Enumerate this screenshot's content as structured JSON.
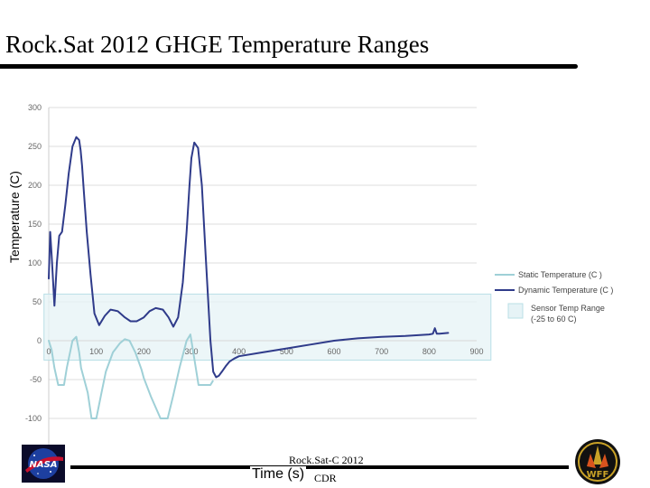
{
  "slide": {
    "title": "Rock.Sat 2012 GHGE Temperature Ranges",
    "footer": "Rock.Sat-C 2012",
    "footer_cdr": "CDR",
    "logo_left": "NASA",
    "logo_right": "WFF"
  },
  "chart_data": {
    "type": "line",
    "title": "",
    "xlabel": "Time (s)",
    "ylabel": "Temperature (C)",
    "xlim": [
      0,
      900
    ],
    "ylim": [
      -100,
      300
    ],
    "xticks": [
      0,
      100,
      200,
      300,
      400,
      500,
      600,
      700,
      800,
      900
    ],
    "yticks": [
      -100,
      -50,
      0,
      50,
      100,
      150,
      200,
      250,
      300
    ],
    "grid": "horizontal",
    "legend_position": "right",
    "colors": {
      "static": "#9fd0d7",
      "dynamic": "#2f3b8a",
      "band_fill": "#e6f3f6",
      "band_stroke": "#b9dfe6",
      "grid": "#dddddd"
    },
    "band": {
      "name": "Sensor Temp Range (-25 to 60 C)",
      "ymin": -25,
      "ymax": 60,
      "xmin": -10,
      "xmax": 930
    },
    "series": [
      {
        "name": "Static Temperature (C )",
        "x": [
          0,
          6,
          12,
          20,
          32,
          38,
          50,
          58,
          64,
          68,
          82,
          90,
          100,
          110,
          120,
          135,
          150,
          160,
          170,
          182,
          195,
          200,
          215,
          235,
          250,
          262,
          275,
          290,
          298,
          304,
          315,
          330,
          340,
          345
        ],
        "values": [
          0,
          -12,
          -35,
          -57,
          -57,
          -35,
          0,
          5,
          -15,
          -35,
          -67,
          -100,
          -100,
          -70,
          -40,
          -15,
          -3,
          2,
          0,
          -15,
          -37,
          -48,
          -72,
          -100,
          -100,
          -70,
          -35,
          0,
          8,
          -15,
          -57,
          -57,
          -57,
          -52
        ]
      },
      {
        "name": "Dynamic Temperature (C )",
        "x": [
          0,
          3,
          6,
          12,
          17,
          22,
          28,
          35,
          42,
          50,
          58,
          64,
          67,
          70,
          74,
          80,
          88,
          96,
          106,
          118,
          130,
          145,
          160,
          172,
          185,
          200,
          212,
          225,
          240,
          252,
          262,
          272,
          282,
          290,
          296,
          300,
          306,
          314,
          322,
          330,
          340,
          346,
          352,
          358,
          364,
          372,
          380,
          390,
          400,
          450,
          500,
          550,
          600,
          650,
          700,
          750,
          800,
          808,
          812,
          816,
          822,
          840
        ],
        "values": [
          80,
          140,
          110,
          45,
          100,
          135,
          140,
          175,
          215,
          250,
          262,
          258,
          245,
          225,
          190,
          140,
          85,
          35,
          20,
          32,
          40,
          38,
          30,
          25,
          25,
          30,
          38,
          42,
          40,
          30,
          18,
          30,
          75,
          140,
          200,
          235,
          255,
          248,
          200,
          110,
          0,
          -40,
          -47,
          -45,
          -40,
          -33,
          -27,
          -23,
          -20,
          -15,
          -10,
          -5,
          0,
          3,
          5,
          6,
          8,
          9,
          16,
          9,
          9,
          10
        ]
      }
    ]
  }
}
